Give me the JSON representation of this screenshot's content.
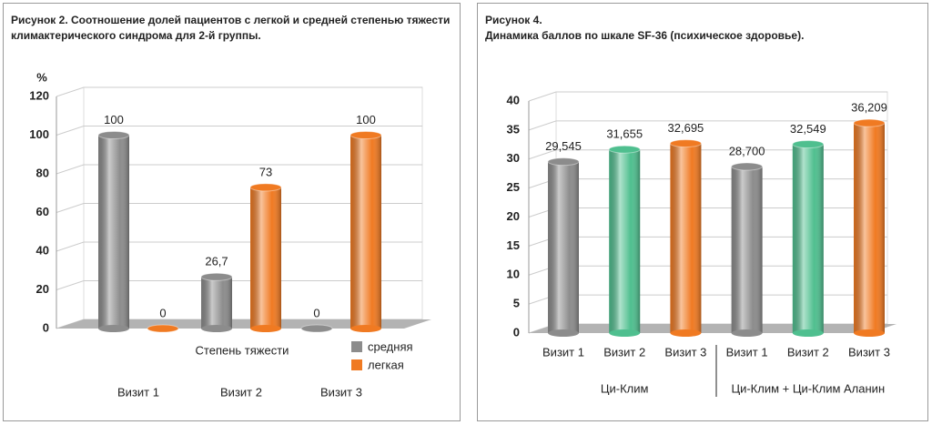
{
  "chart_data": [
    {
      "type": "bar",
      "title": "Рисунок 2. Соотношение долей пациентов с легкой и средней степенью тяжести климактерического синдрома для 2-й группы.",
      "y_label": "%",
      "categories": [
        "Визит 1",
        "Визит 2",
        "Визит 3"
      ],
      "legend_title": "Степень тяжести",
      "series": [
        {
          "name": "средняя",
          "color": "#8c8c8c",
          "values": [
            100,
            26.7,
            0
          ],
          "value_labels": [
            "100",
            "26,7",
            "0"
          ]
        },
        {
          "name": "легкая",
          "color": "#f07a22",
          "values": [
            0,
            73,
            100
          ],
          "value_labels": [
            "0",
            "73",
            "100"
          ]
        }
      ],
      "ylim": [
        0,
        120
      ],
      "yticks": [
        0,
        20,
        40,
        60,
        80,
        100,
        120
      ],
      "grid": true
    },
    {
      "type": "bar",
      "title": "Рисунок 4.",
      "subtitle": "Динамика баллов по шкале SF-36 (психическое здоровье).",
      "categories": [
        "Визит 1",
        "Визит 2",
        "Визит 3",
        "Визит 1",
        "Визит 2",
        "Визит 3"
      ],
      "groups": [
        "Ци-Клим",
        "Ци-Клим + Ци-Клим Аланин"
      ],
      "values": [
        29.545,
        31.655,
        32.695,
        28.7,
        32.549,
        36.209
      ],
      "value_labels": [
        "29,545",
        "31,655",
        "32,695",
        "28,700",
        "32,549",
        "36,209"
      ],
      "colors": [
        "#8c8c8c",
        "#4fbf8f",
        "#f07a22",
        "#8c8c8c",
        "#4fbf8f",
        "#f07a22"
      ],
      "ylim": [
        0,
        40
      ],
      "yticks": [
        0,
        5,
        10,
        15,
        20,
        25,
        30,
        35,
        40
      ],
      "grid": true
    }
  ]
}
